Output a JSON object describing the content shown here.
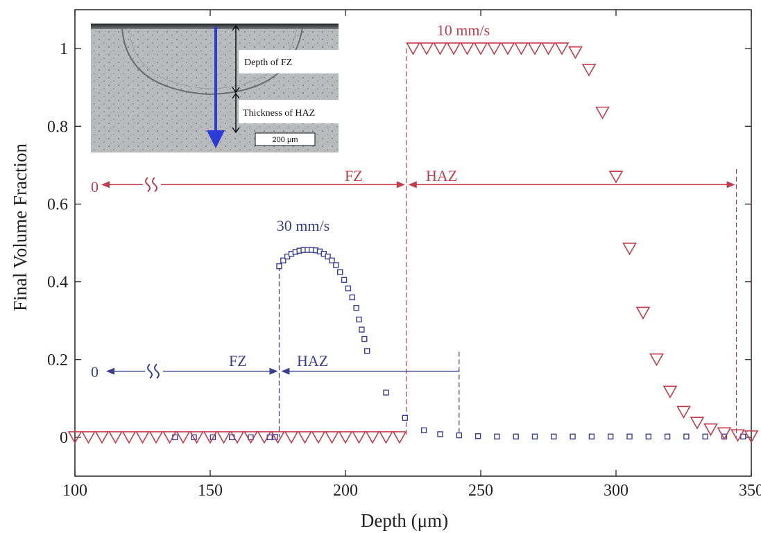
{
  "chart_data": {
    "type": "scatter",
    "xlabel": "Depth (μm)",
    "ylabel": "Final Volume Fraction",
    "xlim": [
      100,
      350
    ],
    "ylim": [
      -0.1,
      1.1
    ],
    "x_ticks": [
      100,
      150,
      200,
      250,
      300,
      350
    ],
    "y_ticks": [
      0,
      0.2,
      0.4,
      0.6,
      0.8,
      1
    ],
    "x_tick_labels": [
      "100",
      "150",
      "200",
      "250",
      "300",
      "350"
    ],
    "y_tick_labels": [
      "0",
      "0.2",
      "0.4",
      "0.6",
      "0.8",
      "1"
    ],
    "grid": false,
    "series": [
      {
        "label": "30 mm/s",
        "marker": "square",
        "color": "#3a3f8f",
        "points": [
          [
            137,
            0
          ],
          [
            144,
            0
          ],
          [
            151,
            0
          ],
          [
            158,
            0
          ],
          [
            165,
            0
          ],
          [
            172,
            0
          ],
          [
            174,
            0.001
          ],
          [
            175.5,
            0.44
          ],
          [
            177,
            0.455
          ],
          [
            178.5,
            0.465
          ],
          [
            180,
            0.472
          ],
          [
            181.5,
            0.477
          ],
          [
            183,
            0.48
          ],
          [
            184.5,
            0.482
          ],
          [
            186,
            0.482
          ],
          [
            187.5,
            0.482
          ],
          [
            189,
            0.481
          ],
          [
            190.5,
            0.478
          ],
          [
            192,
            0.472
          ],
          [
            193.5,
            0.465
          ],
          [
            195,
            0.455
          ],
          [
            196.5,
            0.443
          ],
          [
            198,
            0.425
          ],
          [
            199.5,
            0.405
          ],
          [
            201,
            0.383
          ],
          [
            202.5,
            0.36
          ],
          [
            204,
            0.333
          ],
          [
            205,
            0.303
          ],
          [
            206,
            0.277
          ],
          [
            207,
            0.253
          ],
          [
            208,
            0.222
          ],
          [
            215,
            0.115
          ],
          [
            222,
            0.05
          ],
          [
            229,
            0.018
          ],
          [
            235,
            0.008
          ],
          [
            242,
            0.005
          ],
          [
            249,
            0.003
          ],
          [
            256,
            0.002
          ],
          [
            263,
            0.002
          ],
          [
            270,
            0.002
          ],
          [
            277,
            0.002
          ],
          [
            284,
            0.002
          ],
          [
            291,
            0.002
          ],
          [
            298,
            0.002
          ],
          [
            305,
            0.002
          ],
          [
            312,
            0.002
          ],
          [
            319,
            0.002
          ],
          [
            326,
            0.002
          ],
          [
            333,
            0.002
          ],
          [
            340,
            0.002
          ],
          [
            347,
            0.002
          ]
        ]
      },
      {
        "label": "10 mm/s",
        "marker": "triangle-down",
        "color": "#c43c4c",
        "points": [
          [
            100,
            0
          ],
          [
            105,
            0
          ],
          [
            110,
            0
          ],
          [
            115,
            0
          ],
          [
            120,
            0
          ],
          [
            125,
            0
          ],
          [
            130,
            0
          ],
          [
            135,
            0
          ],
          [
            140,
            0
          ],
          [
            145,
            0
          ],
          [
            150,
            0
          ],
          [
            155,
            0
          ],
          [
            160,
            0
          ],
          [
            165,
            0
          ],
          [
            170,
            0
          ],
          [
            175,
            0
          ],
          [
            180,
            0
          ],
          [
            185,
            0
          ],
          [
            190,
            0
          ],
          [
            195,
            0
          ],
          [
            200,
            0
          ],
          [
            205,
            0
          ],
          [
            210,
            0
          ],
          [
            215,
            0
          ],
          [
            220,
            0
          ],
          [
            225,
            1.0
          ],
          [
            230,
            1.0
          ],
          [
            235,
            1.0
          ],
          [
            240,
            1.0
          ],
          [
            245,
            1.0
          ],
          [
            250,
            1.0
          ],
          [
            255,
            1.0
          ],
          [
            260,
            1.0
          ],
          [
            265,
            1.0
          ],
          [
            270,
            1.0
          ],
          [
            275,
            1.0
          ],
          [
            280,
            1.0
          ],
          [
            285,
            0.99
          ],
          [
            290,
            0.945
          ],
          [
            295,
            0.835
          ],
          [
            300,
            0.67
          ],
          [
            305,
            0.485
          ],
          [
            310,
            0.32
          ],
          [
            315,
            0.2
          ],
          [
            320,
            0.117
          ],
          [
            325,
            0.065
          ],
          [
            330,
            0.037
          ],
          [
            335,
            0.02
          ],
          [
            340,
            0.01
          ],
          [
            345,
            0.005
          ],
          [
            350,
            0.002
          ]
        ]
      }
    ],
    "annotations": {
      "label_10": "10 mm/s",
      "label_30": "30 mm/s",
      "fz": "FZ",
      "haz": "HAZ",
      "zero": "0",
      "red_boundary_x": 222.5,
      "red_end_x": 344.5,
      "blue_boundary_x": 175.5,
      "blue_end_x": 242,
      "red_arrow_y": 0.65,
      "blue_arrow_y": 0.17
    },
    "inset": {
      "depth_label": "Depth of FZ",
      "thickness_label": "Thickness of HAZ",
      "scale_label": "200 μm"
    },
    "colors": {
      "red": "#c43c4c",
      "blue": "#3a3f8f",
      "arrow_blue": "#2a3bd8"
    }
  }
}
